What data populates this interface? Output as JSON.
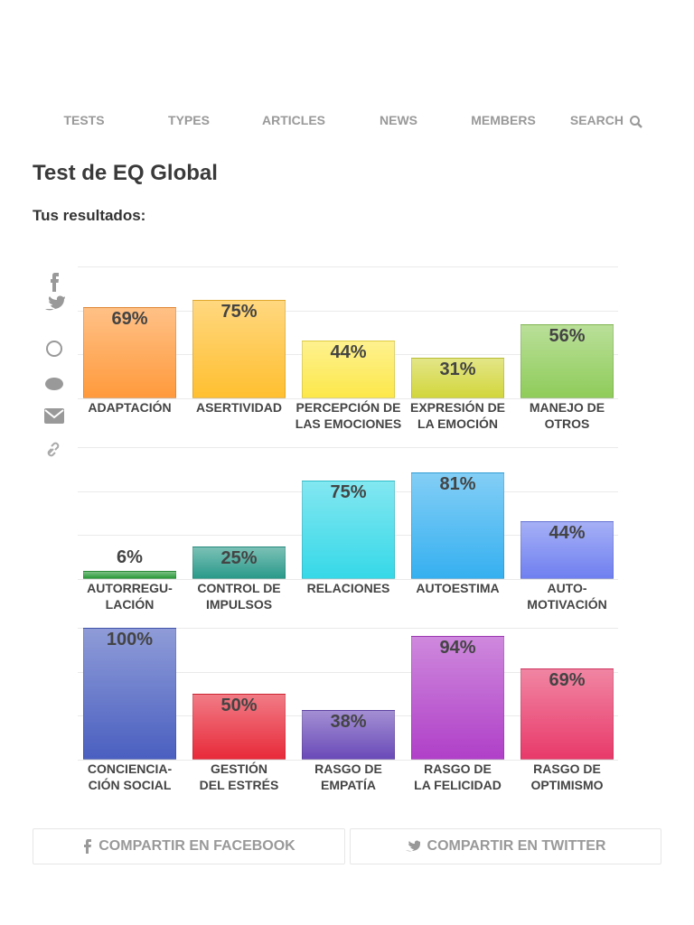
{
  "nav": {
    "items": [
      "TESTS",
      "TYPES",
      "ARTICLES",
      "NEWS",
      "MEMBERS",
      "SEARCH"
    ]
  },
  "header": {
    "title": "Test de EQ Global",
    "subtitle": "Tus resultados:"
  },
  "chart_data": [
    {
      "type": "bar",
      "categories": [
        "ADAPTACIÓN",
        "ASERTIVIDAD",
        "PERCEPCIÓN DE\nLAS EMOCIONES",
        "EXPRESIÓN DE\nLA EMOCIÓN",
        "MANEJO DE\nOTROS"
      ],
      "values": [
        69,
        75,
        44,
        31,
        56
      ],
      "value_labels": [
        "69%",
        "75%",
        "44%",
        "31%",
        "56%"
      ],
      "colors": [
        "#ff9a3c",
        "#ffbf30",
        "#fde84a",
        "#d2d63c",
        "#8fcc5a"
      ],
      "ylim": [
        0,
        100
      ],
      "yticks": [
        0,
        33.3,
        66.7,
        100
      ],
      "grid": true
    },
    {
      "type": "bar",
      "categories": [
        "AUTORREGU-\nLACIÓN",
        "CONTROL DE\nIMPULSOS",
        "RELACIONES",
        "AUTOESTIMA",
        "AUTO-\nMOTIVACIÓN"
      ],
      "values": [
        6,
        25,
        75,
        81,
        44
      ],
      "value_labels": [
        "6%",
        "25%",
        "75%",
        "81%",
        "44%"
      ],
      "colors": [
        "#2a9a3a",
        "#2a9a8a",
        "#36d8e8",
        "#36b0f0",
        "#6f7ff0"
      ],
      "ylim": [
        0,
        100
      ],
      "yticks": [
        0,
        33.3,
        66.7,
        100
      ],
      "grid": true
    },
    {
      "type": "bar",
      "categories": [
        "CONCIENCIA-\nCIÓN SOCIAL",
        "GESTIÓN\nDEL ESTRÉS",
        "RASGO DE\nEMPATÍA",
        "RASGO DE\nLA FELICIDAD",
        "RASGO DE\nOPTIMISMO"
      ],
      "values": [
        100,
        50,
        38,
        94,
        69
      ],
      "value_labels": [
        "100%",
        "50%",
        "38%",
        "94%",
        "69%"
      ],
      "colors": [
        "#4a5fc0",
        "#e82a3a",
        "#6a4ab8",
        "#b040c8",
        "#e83a6a"
      ],
      "ylim": [
        0,
        100
      ],
      "yticks": [
        0,
        33.3,
        66.7,
        100
      ],
      "grid": true
    }
  ],
  "share": {
    "facebook": "COMPARTIR EN FACEBOOK",
    "twitter": "COMPARTIR EN TWITTER"
  }
}
